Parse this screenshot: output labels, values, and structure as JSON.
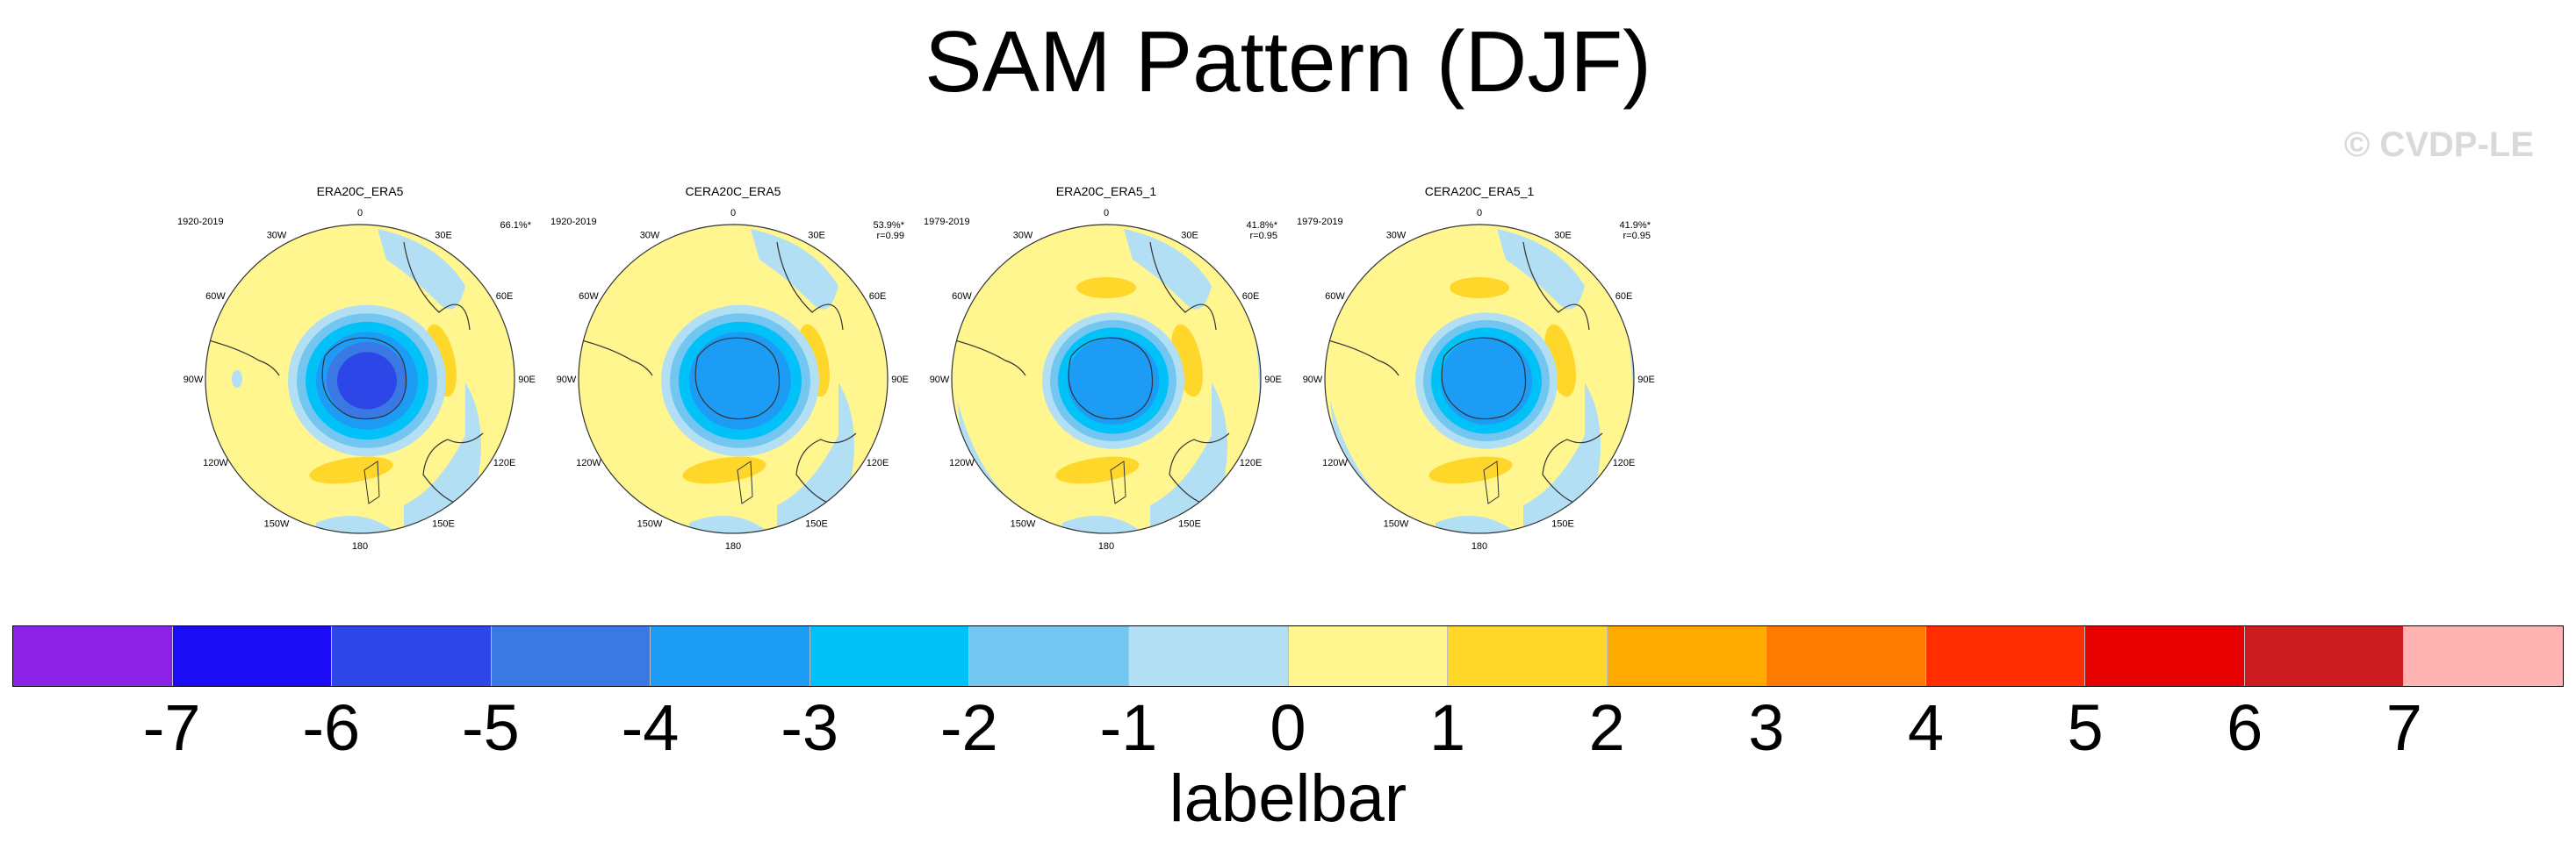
{
  "title": "SAM Pattern (DJF)",
  "watermark": "© CVDP-LE",
  "lon_labels": [
    "0",
    "30E",
    "60E",
    "90E",
    "120E",
    "150E",
    "180",
    "150W",
    "120W",
    "90W",
    "60W",
    "30W"
  ],
  "panels": [
    {
      "title": "ERA20C_ERA5",
      "period": "1920-2019",
      "pct": "66.1%*",
      "r": ""
    },
    {
      "title": "CERA20C_ERA5",
      "period": "1920-2019",
      "pct": "53.9%*",
      "r": "r=0.99"
    },
    {
      "title": "ERA20C_ERA5_1",
      "period": "1979-2019",
      "pct": "41.8%*",
      "r": "r=0.95"
    },
    {
      "title": "CERA20C_ERA5_1",
      "period": "1979-2019",
      "pct": "41.9%*",
      "r": "r=0.95"
    }
  ],
  "labelbar": {
    "title": "labelbar",
    "ticks": [
      "-7",
      "-6",
      "-5",
      "-4",
      "-3",
      "-2",
      "-1",
      "0",
      "1",
      "2",
      "3",
      "4",
      "5",
      "6",
      "7"
    ],
    "colors": [
      "#8b22e6",
      "#1c0bf5",
      "#2d46e8",
      "#3a79e4",
      "#1d9cf5",
      "#00c1f8",
      "#72c6f0",
      "#b3dff4",
      "#fff690",
      "#ffd72b",
      "#ffaa00",
      "#ff7a00",
      "#ff2d00",
      "#e60000",
      "#cc1c20",
      "#ffb3b3"
    ]
  }
}
